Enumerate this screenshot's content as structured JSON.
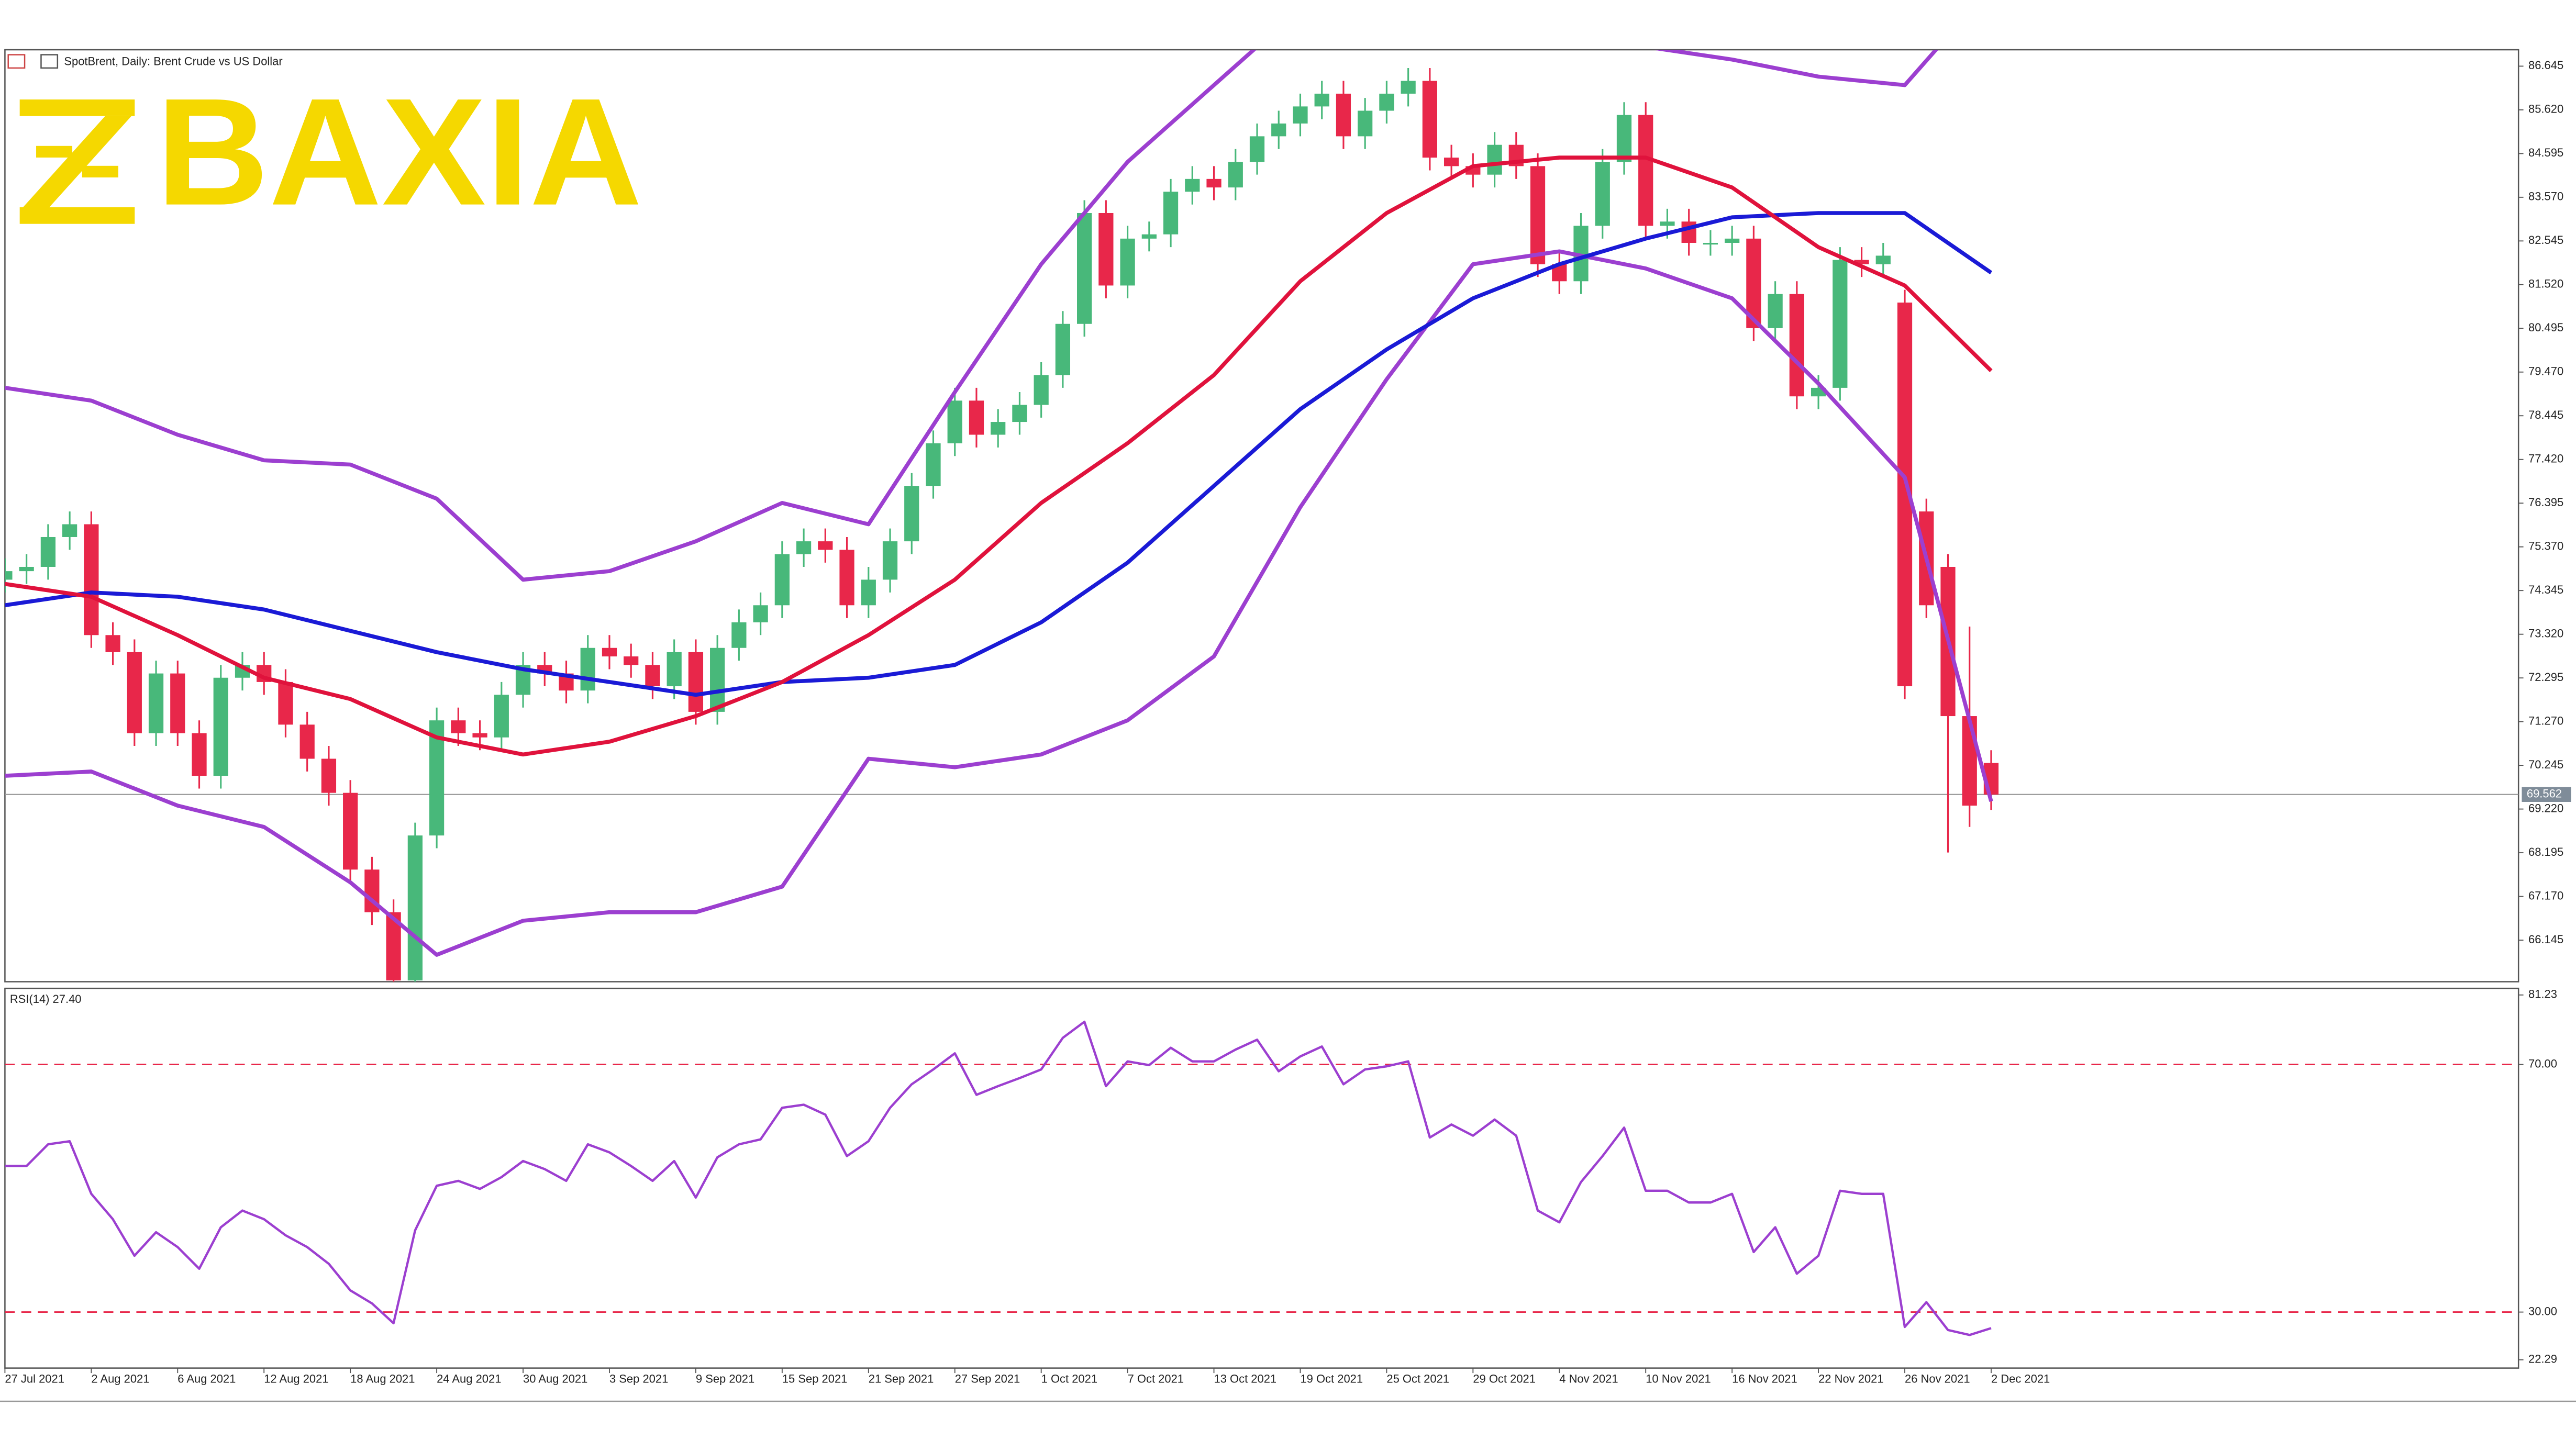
{
  "chart_data": [
    {
      "type": "candlestick",
      "title": "SpotBrent, Daily: Brent Crude vs US Dollar",
      "watermark": "BAXIA",
      "categories": [
        "27 Jul 2021",
        null,
        null,
        null,
        "2 Aug 2021",
        null,
        null,
        null,
        "6 Aug 2021",
        null,
        null,
        null,
        "12 Aug 2021",
        null,
        null,
        null,
        "18 Aug 2021",
        null,
        null,
        null,
        "24 Aug 2021",
        null,
        null,
        null,
        "30 Aug 2021",
        null,
        null,
        null,
        "3 Sep 2021",
        null,
        null,
        null,
        "9 Sep 2021",
        null,
        null,
        null,
        "15 Sep 2021",
        null,
        null,
        null,
        "21 Sep 2021",
        null,
        null,
        null,
        "27 Sep 2021",
        null,
        null,
        null,
        "1 Oct 2021",
        null,
        null,
        null,
        "7 Oct 2021",
        null,
        null,
        null,
        "13 Oct 2021",
        null,
        null,
        null,
        "19 Oct 2021",
        null,
        null,
        null,
        "25 Oct 2021",
        null,
        null,
        null,
        "29 Oct 2021",
        null,
        null,
        null,
        "4 Nov 2021",
        null,
        null,
        null,
        "10 Nov 2021",
        null,
        null,
        null,
        "16 Nov 2021",
        null,
        null,
        null,
        "22 Nov 2021",
        null,
        null,
        null,
        "26 Nov 2021",
        null,
        null,
        null,
        "2 Dec 2021"
      ],
      "open": [
        74.6,
        74.8,
        74.9,
        75.6,
        75.9,
        73.3,
        72.9,
        71.0,
        72.4,
        71.0,
        70.0,
        72.3,
        72.6,
        72.2,
        71.2,
        70.4,
        69.6,
        67.8,
        66.8,
        65.2,
        68.6,
        71.3,
        71.0,
        70.9,
        71.9,
        72.6,
        72.4,
        72.0,
        73.0,
        72.8,
        72.6,
        72.1,
        72.9,
        71.5,
        73.0,
        73.6,
        74.0,
        75.2,
        75.5,
        75.3,
        74.0,
        74.6,
        75.5,
        76.8,
        77.8,
        78.8,
        78.0,
        78.3,
        78.7,
        79.4,
        80.6,
        83.2,
        81.5,
        82.6,
        82.7,
        83.7,
        84.0,
        83.8,
        84.4,
        85.0,
        85.3,
        85.7,
        86.0,
        85.0,
        85.6,
        86.0,
        86.3,
        84.5,
        84.3,
        84.1,
        84.8,
        84.3,
        82.0,
        81.6,
        82.9,
        84.4,
        85.5,
        82.9,
        83.0,
        82.5,
        82.5,
        82.6,
        80.5,
        81.3,
        78.9,
        79.1,
        82.1,
        82.0,
        81.1,
        76.2,
        74.9,
        71.4,
        70.3
      ],
      "high": [
        75.1,
        75.2,
        75.9,
        76.2,
        76.2,
        73.6,
        73.2,
        72.7,
        72.7,
        71.3,
        72.6,
        72.9,
        72.9,
        72.5,
        71.5,
        70.7,
        69.9,
        68.1,
        67.1,
        68.9,
        71.6,
        71.6,
        71.3,
        72.2,
        72.9,
        72.9,
        72.7,
        73.3,
        73.3,
        73.1,
        72.9,
        73.2,
        73.2,
        73.3,
        73.9,
        74.3,
        75.5,
        75.8,
        75.8,
        75.6,
        74.9,
        75.8,
        77.1,
        78.1,
        79.1,
        79.1,
        78.6,
        79.0,
        79.7,
        80.9,
        83.5,
        83.5,
        82.9,
        83.0,
        84.0,
        84.3,
        84.3,
        84.7,
        85.3,
        85.6,
        86.0,
        86.3,
        86.3,
        85.9,
        86.3,
        86.6,
        86.6,
        84.8,
        84.6,
        85.1,
        85.1,
        84.6,
        82.3,
        83.2,
        84.7,
        85.8,
        85.8,
        83.3,
        83.3,
        82.8,
        82.9,
        82.9,
        81.6,
        81.6,
        79.4,
        82.4,
        82.4,
        82.5,
        81.4,
        76.5,
        75.2,
        73.5,
        70.6
      ],
      "low": [
        74.3,
        74.5,
        74.6,
        75.3,
        73.0,
        72.6,
        70.7,
        70.7,
        70.7,
        69.7,
        69.7,
        72.0,
        71.9,
        70.9,
        70.1,
        69.3,
        67.5,
        66.5,
        65.0,
        65.0,
        68.3,
        70.7,
        70.6,
        70.6,
        71.6,
        72.1,
        71.7,
        71.7,
        72.5,
        72.3,
        71.8,
        71.8,
        71.2,
        71.2,
        72.7,
        73.3,
        73.7,
        74.9,
        75.0,
        73.7,
        73.7,
        74.3,
        75.2,
        76.5,
        77.5,
        77.7,
        77.7,
        78.0,
        78.4,
        79.1,
        80.3,
        81.2,
        81.2,
        82.3,
        82.4,
        83.4,
        83.5,
        83.5,
        84.1,
        84.7,
        85.0,
        85.4,
        84.7,
        84.7,
        85.3,
        85.7,
        84.2,
        84.0,
        83.8,
        83.8,
        84.0,
        81.7,
        81.3,
        81.3,
        82.6,
        84.1,
        82.6,
        82.6,
        82.2,
        82.2,
        82.2,
        80.2,
        80.2,
        78.6,
        78.6,
        78.8,
        81.7,
        81.7,
        71.8,
        73.7,
        68.2,
        68.8,
        69.2
      ],
      "close": [
        74.8,
        74.9,
        75.6,
        75.9,
        73.3,
        72.9,
        71.0,
        72.4,
        71.0,
        70.0,
        72.3,
        72.6,
        72.2,
        71.2,
        70.4,
        69.6,
        67.8,
        66.8,
        65.2,
        68.6,
        71.3,
        71.0,
        70.9,
        71.9,
        72.6,
        72.4,
        72.0,
        73.0,
        72.8,
        72.6,
        72.1,
        72.9,
        71.5,
        73.0,
        73.6,
        74.0,
        75.2,
        75.5,
        75.3,
        74.0,
        74.6,
        75.5,
        76.8,
        77.8,
        78.8,
        78.0,
        78.3,
        78.7,
        79.4,
        80.6,
        83.2,
        81.5,
        82.6,
        82.7,
        83.7,
        84.0,
        83.8,
        84.4,
        85.0,
        85.3,
        85.7,
        86.0,
        85.0,
        85.6,
        86.0,
        86.3,
        84.5,
        84.3,
        84.1,
        84.8,
        84.3,
        82.0,
        81.6,
        82.9,
        84.4,
        85.5,
        82.9,
        83.0,
        82.5,
        82.5,
        82.6,
        80.5,
        81.3,
        78.9,
        79.1,
        82.1,
        82.0,
        82.2,
        72.1,
        74.0,
        71.4,
        69.3,
        69.56
      ],
      "up_color": "#48b87a",
      "down_color": "#e8274a",
      "overlays": [
        {
          "color": "#9c3fd0",
          "values": [
            79.1,
            78.8,
            78.0,
            77.4,
            77.3,
            76.5,
            74.6,
            74.8,
            75.5,
            76.4,
            75.9,
            79.0,
            82.0,
            84.4,
            86.2,
            88.0,
            87.5,
            87.1,
            87.1,
            87.1,
            86.8,
            86.4,
            86.2,
            88.5
          ]
        },
        {
          "color": "#9c3fd0",
          "values": [
            70.0,
            70.1,
            69.3,
            68.8,
            67.5,
            65.8,
            66.6,
            66.8,
            66.8,
            67.4,
            70.4,
            70.2,
            70.5,
            71.3,
            72.8,
            76.3,
            79.3,
            82.0,
            82.3,
            81.9,
            81.2,
            79.2,
            77.0,
            69.4
          ]
        },
        {
          "color": "#1a1ad6",
          "values": [
            74.0,
            74.3,
            74.2,
            73.9,
            73.4,
            72.9,
            72.5,
            72.2,
            71.9,
            72.2,
            72.3,
            72.6,
            73.6,
            75.0,
            76.8,
            78.6,
            80.0,
            81.2,
            82.0,
            82.6,
            83.1,
            83.2,
            83.2,
            81.8
          ]
        },
        {
          "color": "#e0123c",
          "values": [
            74.5,
            74.2,
            73.3,
            72.3,
            71.8,
            70.9,
            70.5,
            70.8,
            71.4,
            72.2,
            73.3,
            74.6,
            76.4,
            77.8,
            79.4,
            81.6,
            83.2,
            84.3,
            84.5,
            84.5,
            83.8,
            82.4,
            81.5,
            79.5
          ]
        }
      ],
      "price_line": 69.562,
      "ylim": [
        65.17,
        87.03
      ],
      "yticks": [
        86.645,
        {
          "value": 85.62,
          "label": "85.620"
        },
        84.595,
        {
          "value": 83.57,
          "label": "83.570"
        },
        82.545,
        {
          "value": 81.52,
          "label": "81.520"
        },
        80.495,
        {
          "value": 79.47,
          "label": "79.470"
        },
        78.445,
        {
          "value": 77.42,
          "label": "77.420"
        },
        76.395,
        {
          "value": 75.37,
          "label": "75.370"
        },
        74.345,
        {
          "value": 73.32,
          "label": "73.320"
        },
        72.295,
        {
          "value": 71.27,
          "label": "71.270"
        },
        70.245,
        {
          "value": 69.22,
          "label": "69.220"
        },
        68.195,
        {
          "value": 67.17,
          "label": "67.170"
        },
        66.145
      ]
    },
    {
      "type": "line",
      "title": "RSI(14) 27.40",
      "color": "#9c3fd0",
      "values": [
        53.6,
        53.6,
        57.1,
        57.6,
        49.1,
        45.0,
        39.1,
        42.9,
        40.5,
        37.0,
        43.7,
        46.4,
        45.0,
        42.4,
        40.5,
        37.8,
        33.5,
        31.4,
        28.2,
        43.2,
        50.4,
        51.2,
        49.9,
        51.8,
        54.4,
        53.1,
        51.2,
        57.1,
        55.8,
        53.6,
        51.2,
        54.4,
        48.5,
        55.0,
        57.1,
        57.9,
        63.0,
        63.5,
        61.9,
        55.2,
        57.6,
        63.0,
        66.8,
        69.2,
        71.8,
        65.1,
        66.5,
        67.8,
        69.2,
        74.3,
        76.9,
        66.5,
        70.5,
        69.9,
        72.7,
        70.5,
        70.5,
        72.4,
        74.0,
        68.9,
        71.3,
        72.9,
        66.8,
        69.2,
        69.7,
        70.5,
        58.2,
        60.3,
        58.5,
        61.1,
        58.5,
        46.4,
        44.5,
        51.0,
        55.2,
        59.8,
        49.6,
        49.6,
        47.7,
        47.7,
        49.1,
        39.7,
        43.7,
        36.2,
        39.1,
        49.6,
        49.1,
        49.1,
        27.6,
        31.6,
        27.1,
        26.3,
        27.4
      ],
      "levels": [
        70,
        30
      ],
      "level_color": "#e8274a",
      "ylim": [
        20.95,
        82.3
      ],
      "yticks": [
        81.23,
        {
          "value": 70,
          "label": "70.00"
        },
        {
          "value": 30,
          "label": "30.00"
        },
        22.29
      ]
    }
  ]
}
